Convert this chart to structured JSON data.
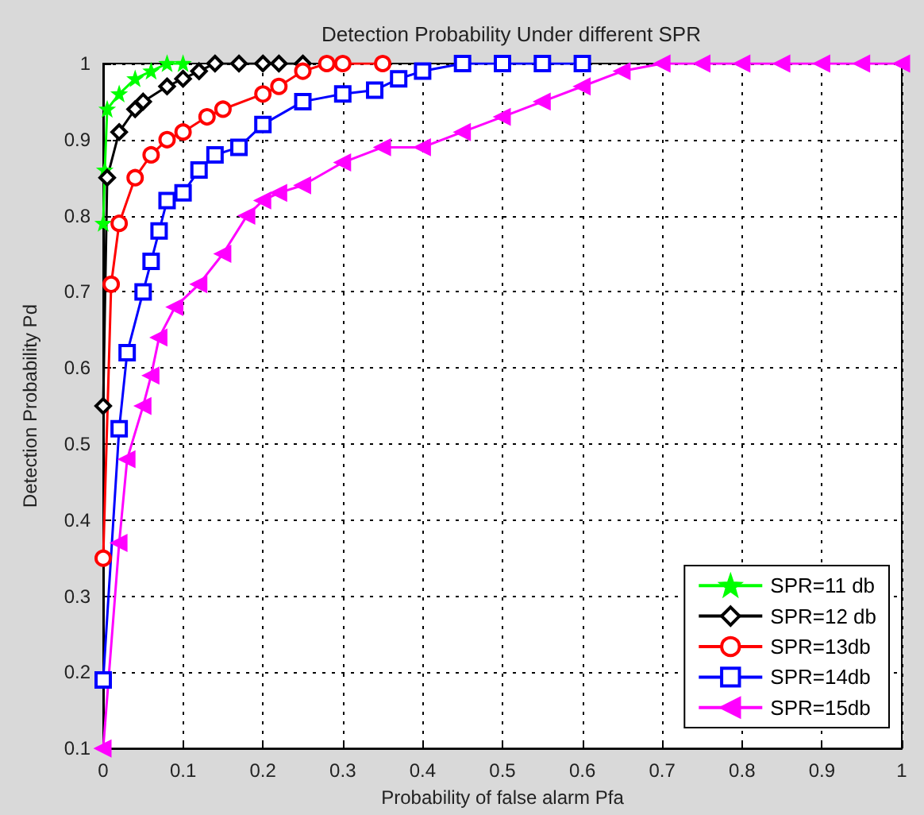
{
  "chart_data": {
    "type": "line",
    "title": "Detection Probability Under different SPR",
    "xlabel": "Probability of false alarm Pfa",
    "ylabel": "Detection Probability Pd",
    "xlim": [
      0,
      1
    ],
    "xticks": [
      0,
      0.1,
      0.2,
      0.3,
      0.4,
      0.5,
      0.6,
      0.7,
      0.8,
      0.9,
      1
    ],
    "ylim": [
      0.1,
      1
    ],
    "yticks": [
      0.1,
      0.2,
      0.3,
      0.4,
      0.5,
      0.6,
      0.7,
      0.8,
      0.9,
      1
    ],
    "grid": true,
    "legend": "bottom right",
    "line_style": "solid",
    "series": [
      {
        "name": "SPR=11 db",
        "color": "#00ff00",
        "marker": "star",
        "x": [
          0,
          0.002,
          0.005,
          0.02,
          0.04,
          0.06,
          0.08,
          0.1
        ],
        "values": [
          0.79,
          0.86,
          0.94,
          0.96,
          0.98,
          0.99,
          1,
          1
        ]
      },
      {
        "name": "SPR=12 db",
        "color": "#000000",
        "marker": "diamond",
        "x": [
          0,
          0.005,
          0.02,
          0.04,
          0.05,
          0.08,
          0.1,
          0.12,
          0.14,
          0.17,
          0.2,
          0.22,
          0.25
        ],
        "values": [
          0.55,
          0.85,
          0.91,
          0.94,
          0.95,
          0.97,
          0.98,
          0.99,
          1,
          1,
          1,
          1,
          1
        ]
      },
      {
        "name": "SPR=13db",
        "color": "#ff0000",
        "marker": "circle",
        "x": [
          0,
          0.01,
          0.02,
          0.04,
          0.06,
          0.08,
          0.1,
          0.13,
          0.15,
          0.2,
          0.22,
          0.25,
          0.28,
          0.3,
          0.35
        ],
        "values": [
          0.35,
          0.71,
          0.79,
          0.85,
          0.88,
          0.9,
          0.91,
          0.93,
          0.94,
          0.96,
          0.97,
          0.99,
          1,
          1,
          1
        ]
      },
      {
        "name": "SPR=14db",
        "color": "#0000ff",
        "marker": "square",
        "x": [
          0,
          0.02,
          0.03,
          0.05,
          0.06,
          0.07,
          0.08,
          0.1,
          0.12,
          0.14,
          0.17,
          0.2,
          0.25,
          0.3,
          0.34,
          0.37,
          0.4,
          0.45,
          0.5,
          0.55,
          0.6
        ],
        "values": [
          0.19,
          0.52,
          0.62,
          0.7,
          0.74,
          0.78,
          0.82,
          0.83,
          0.86,
          0.88,
          0.89,
          0.92,
          0.95,
          0.96,
          0.965,
          0.98,
          0.99,
          1,
          1,
          1,
          1
        ]
      },
      {
        "name": "SPR=15db",
        "color": "#ff00ff",
        "marker": "triangle",
        "x": [
          0,
          0.02,
          0.03,
          0.05,
          0.06,
          0.07,
          0.09,
          0.12,
          0.15,
          0.18,
          0.2,
          0.22,
          0.25,
          0.3,
          0.35,
          0.4,
          0.45,
          0.5,
          0.55,
          0.6,
          0.65,
          0.7,
          0.75,
          0.8,
          0.85,
          0.9,
          0.95,
          1
        ],
        "values": [
          0.1,
          0.37,
          0.48,
          0.55,
          0.59,
          0.64,
          0.68,
          0.71,
          0.75,
          0.8,
          0.82,
          0.83,
          0.84,
          0.87,
          0.89,
          0.89,
          0.91,
          0.93,
          0.95,
          0.97,
          0.99,
          1,
          1,
          1,
          1,
          1,
          1,
          1
        ]
      }
    ]
  }
}
